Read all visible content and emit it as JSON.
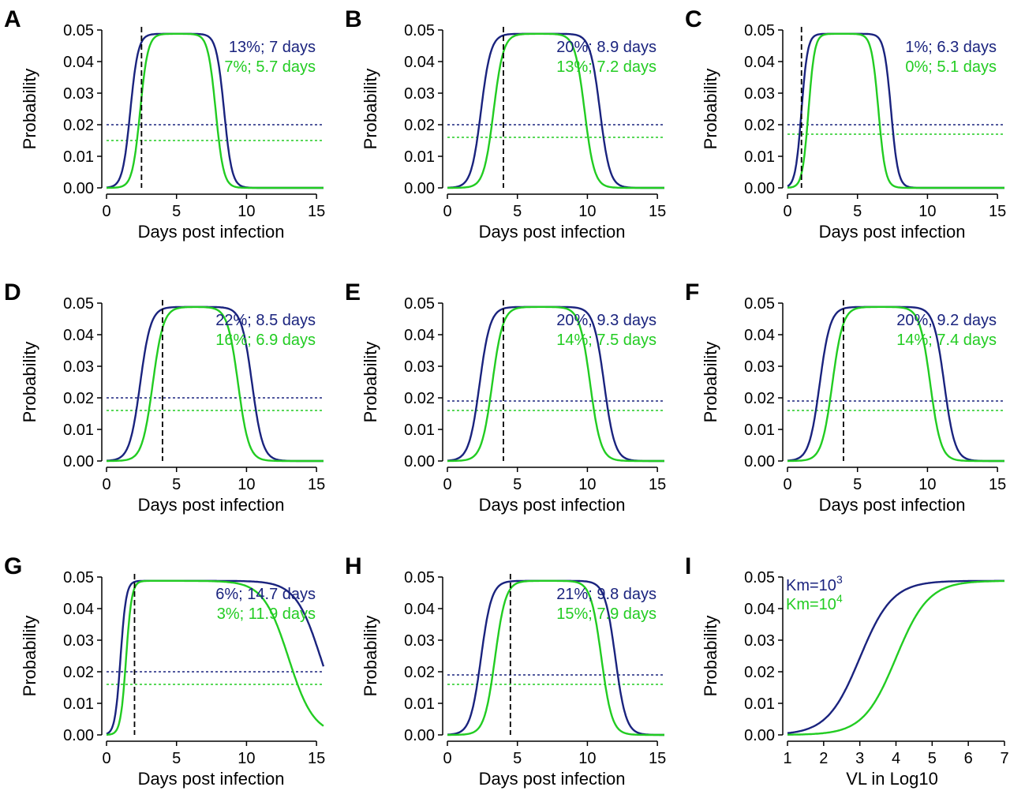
{
  "colors": {
    "navy": "#1a237e",
    "green": "#22cc22",
    "black": "#000000"
  },
  "chart_data": [
    {
      "panel": "A",
      "type": "line",
      "xlabel": "Days post infection",
      "ylabel": "Probability",
      "xlim": [
        0,
        15.5
      ],
      "ylim": [
        0,
        0.05
      ],
      "xticks": [
        "0",
        "5",
        "10",
        "15"
      ],
      "yticks": [
        "0.00",
        "0.01",
        "0.02",
        "0.03",
        "0.04",
        "0.05"
      ],
      "series": [
        {
          "color": "navy",
          "rise_mid": 1.7,
          "rise_w": 0.28,
          "fall_mid": 8.4,
          "fall_w": 0.28,
          "threshold": 0.02,
          "annotation": "13%; 7 days"
        },
        {
          "color": "green",
          "rise_mid": 2.4,
          "rise_w": 0.28,
          "fall_mid": 7.8,
          "fall_w": 0.28,
          "threshold": 0.015,
          "annotation": "7%; 5.7 days"
        }
      ],
      "vline": 2.5
    },
    {
      "panel": "B",
      "type": "line",
      "xlabel": "Days post infection",
      "ylabel": "Probability",
      "xlim": [
        0,
        15.5
      ],
      "ylim": [
        0,
        0.05
      ],
      "xticks": [
        "0",
        "5",
        "10",
        "15"
      ],
      "yticks": [
        "0.00",
        "0.01",
        "0.02",
        "0.03",
        "0.04",
        "0.05"
      ],
      "series": [
        {
          "color": "navy",
          "rise_mid": 2.4,
          "rise_w": 0.35,
          "fall_mid": 10.9,
          "fall_w": 0.35,
          "threshold": 0.02,
          "annotation": "20%; 8.9 days"
        },
        {
          "color": "green",
          "rise_mid": 3.3,
          "rise_w": 0.35,
          "fall_mid": 9.8,
          "fall_w": 0.35,
          "threshold": 0.016,
          "annotation": "13%; 7.2 days"
        }
      ],
      "vline": 4
    },
    {
      "panel": "C",
      "type": "line",
      "xlabel": "Days post infection",
      "ylabel": "Probability",
      "xlim": [
        0,
        15.5
      ],
      "ylim": [
        0,
        0.05
      ],
      "xticks": [
        "0",
        "5",
        "10",
        "15"
      ],
      "yticks": [
        "0.00",
        "0.01",
        "0.02",
        "0.03",
        "0.04",
        "0.05"
      ],
      "series": [
        {
          "color": "navy",
          "rise_mid": 1.0,
          "rise_w": 0.22,
          "fall_mid": 7.4,
          "fall_w": 0.25,
          "threshold": 0.02,
          "annotation": "1%; 6.3 days"
        },
        {
          "color": "green",
          "rise_mid": 1.5,
          "rise_w": 0.22,
          "fall_mid": 6.5,
          "fall_w": 0.25,
          "threshold": 0.017,
          "annotation": "0%; 5.1 days"
        }
      ],
      "vline": 1
    },
    {
      "panel": "D",
      "type": "line",
      "xlabel": "Days post infection",
      "ylabel": "Probability",
      "xlim": [
        0,
        15.5
      ],
      "ylim": [
        0,
        0.05
      ],
      "xticks": [
        "0",
        "5",
        "10",
        "15"
      ],
      "yticks": [
        "0.00",
        "0.01",
        "0.02",
        "0.03",
        "0.04",
        "0.05"
      ],
      "series": [
        {
          "color": "navy",
          "rise_mid": 2.4,
          "rise_w": 0.38,
          "fall_mid": 10.4,
          "fall_w": 0.38,
          "threshold": 0.02,
          "annotation": "22%; 8.5 days"
        },
        {
          "color": "green",
          "rise_mid": 3.3,
          "rise_w": 0.38,
          "fall_mid": 9.4,
          "fall_w": 0.38,
          "threshold": 0.016,
          "annotation": "16%; 6.9 days"
        }
      ],
      "vline": 4
    },
    {
      "panel": "E",
      "type": "line",
      "xlabel": "Days post infection",
      "ylabel": "Probability",
      "xlim": [
        0,
        15.5
      ],
      "ylim": [
        0,
        0.05
      ],
      "xticks": [
        "0",
        "5",
        "10",
        "15"
      ],
      "yticks": [
        "0.00",
        "0.01",
        "0.02",
        "0.03",
        "0.04",
        "0.05"
      ],
      "series": [
        {
          "color": "navy",
          "rise_mid": 2.3,
          "rise_w": 0.38,
          "fall_mid": 11.2,
          "fall_w": 0.38,
          "threshold": 0.019,
          "annotation": "20%; 9.3 days"
        },
        {
          "color": "green",
          "rise_mid": 3.2,
          "rise_w": 0.38,
          "fall_mid": 10.2,
          "fall_w": 0.38,
          "threshold": 0.016,
          "annotation": "14%; 7.5 days"
        }
      ],
      "vline": 4
    },
    {
      "panel": "F",
      "type": "line",
      "xlabel": "Days post infection",
      "ylabel": "Probability",
      "xlim": [
        0,
        15.5
      ],
      "ylim": [
        0,
        0.05
      ],
      "xticks": [
        "0",
        "5",
        "10",
        "15"
      ],
      "yticks": [
        "0.00",
        "0.01",
        "0.02",
        "0.03",
        "0.04",
        "0.05"
      ],
      "series": [
        {
          "color": "navy",
          "rise_mid": 2.3,
          "rise_w": 0.38,
          "fall_mid": 11.2,
          "fall_w": 0.38,
          "threshold": 0.019,
          "annotation": "20%; 9.2 days"
        },
        {
          "color": "green",
          "rise_mid": 3.2,
          "rise_w": 0.38,
          "fall_mid": 10.2,
          "fall_w": 0.38,
          "threshold": 0.016,
          "annotation": "14%; 7.4 days"
        }
      ],
      "vline": 4
    },
    {
      "panel": "G",
      "type": "line",
      "xlabel": "Days post infection",
      "ylabel": "Probability",
      "xlim": [
        0,
        15.5
      ],
      "ylim": [
        0,
        0.05
      ],
      "xticks": [
        "0",
        "5",
        "10",
        "15"
      ],
      "yticks": [
        "0.00",
        "0.01",
        "0.02",
        "0.03",
        "0.04",
        "0.05"
      ],
      "series": [
        {
          "color": "navy",
          "rise_mid": 1.0,
          "rise_w": 0.2,
          "fall_mid": 15.3,
          "fall_w": 0.9,
          "threshold": 0.02,
          "annotation": "6%; 14.7 days"
        },
        {
          "color": "green",
          "rise_mid": 1.4,
          "rise_w": 0.2,
          "fall_mid": 13.0,
          "fall_w": 0.9,
          "threshold": 0.016,
          "annotation": "3%; 11.9 days"
        }
      ],
      "vline": 2
    },
    {
      "panel": "H",
      "type": "line",
      "xlabel": "Days post infection",
      "ylabel": "Probability",
      "xlim": [
        0,
        15.5
      ],
      "ylim": [
        0,
        0.05
      ],
      "xticks": [
        "0",
        "5",
        "10",
        "15"
      ],
      "yticks": [
        "0.00",
        "0.01",
        "0.02",
        "0.03",
        "0.04",
        "0.05"
      ],
      "series": [
        {
          "color": "navy",
          "rise_mid": 2.4,
          "rise_w": 0.38,
          "fall_mid": 12.0,
          "fall_w": 0.38,
          "threshold": 0.019,
          "annotation": "21%; 9.8 days"
        },
        {
          "color": "green",
          "rise_mid": 3.4,
          "rise_w": 0.38,
          "fall_mid": 11.0,
          "fall_w": 0.38,
          "threshold": 0.016,
          "annotation": "15%; 7.9 days"
        }
      ],
      "vline": 4.5
    },
    {
      "panel": "I",
      "type": "line",
      "xlabel": "VL in Log10",
      "ylabel": "Probability",
      "xlim": [
        1,
        7
      ],
      "ylim": [
        0,
        0.05
      ],
      "xticks": [
        "1",
        "2",
        "3",
        "4",
        "5",
        "6",
        "7"
      ],
      "yticks": [
        "0.00",
        "0.01",
        "0.02",
        "0.03",
        "0.04",
        "0.05"
      ],
      "series": [
        {
          "color": "navy",
          "name": "Km=10",
          "name_sup": "3",
          "mid": 3.0,
          "w": 0.45
        },
        {
          "color": "green",
          "name": "Km=10",
          "name_sup": "4",
          "mid": 4.0,
          "w": 0.45
        }
      ]
    }
  ]
}
